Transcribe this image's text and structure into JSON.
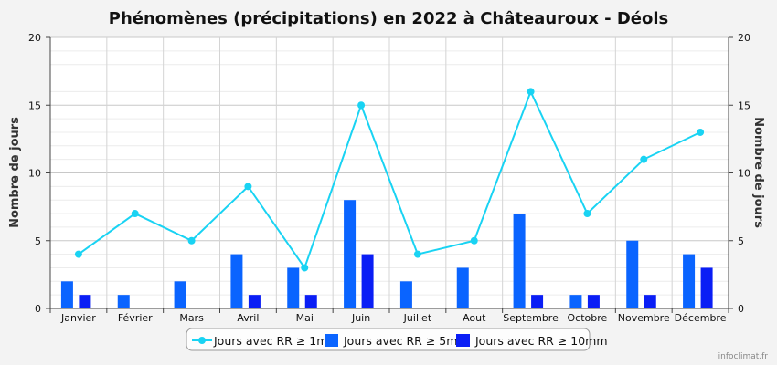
{
  "chart_data": {
    "type": "bar+line",
    "title": "Phénomènes (précipitations) en 2022 à Châteauroux - Déols",
    "ylabel_left": "Nombre de jours",
    "ylabel_right": "Nombre de jours",
    "ylim": [
      0,
      20
    ],
    "yticks": [
      "0",
      "5",
      "10",
      "15",
      "20"
    ],
    "categories": [
      "Janvier",
      "Février",
      "Mars",
      "Avril",
      "Mai",
      "Juin",
      "Juillet",
      "Aout",
      "Septembre",
      "Octobre",
      "Novembre",
      "Décembre"
    ],
    "series": [
      {
        "name": "Jours avec RR ≥ 1mm",
        "type": "line",
        "color": "#19d3f3",
        "values": [
          4,
          7,
          5,
          9,
          3,
          15,
          4,
          5,
          16,
          7,
          11,
          13
        ]
      },
      {
        "name": "Jours avec RR ≥ 5mm",
        "type": "bar",
        "color": "#0a64ff",
        "values": [
          2,
          1,
          2,
          4,
          3,
          8,
          2,
          3,
          7,
          1,
          5,
          4
        ]
      },
      {
        "name": "Jours avec RR ≥ 10mm",
        "type": "bar",
        "color": "#0a1ef5",
        "values": [
          1,
          0,
          0,
          1,
          1,
          4,
          0,
          0,
          1,
          1,
          1,
          3
        ]
      }
    ],
    "grid": true,
    "legend": "bottom-center"
  },
  "credit": "infoclimat.fr"
}
